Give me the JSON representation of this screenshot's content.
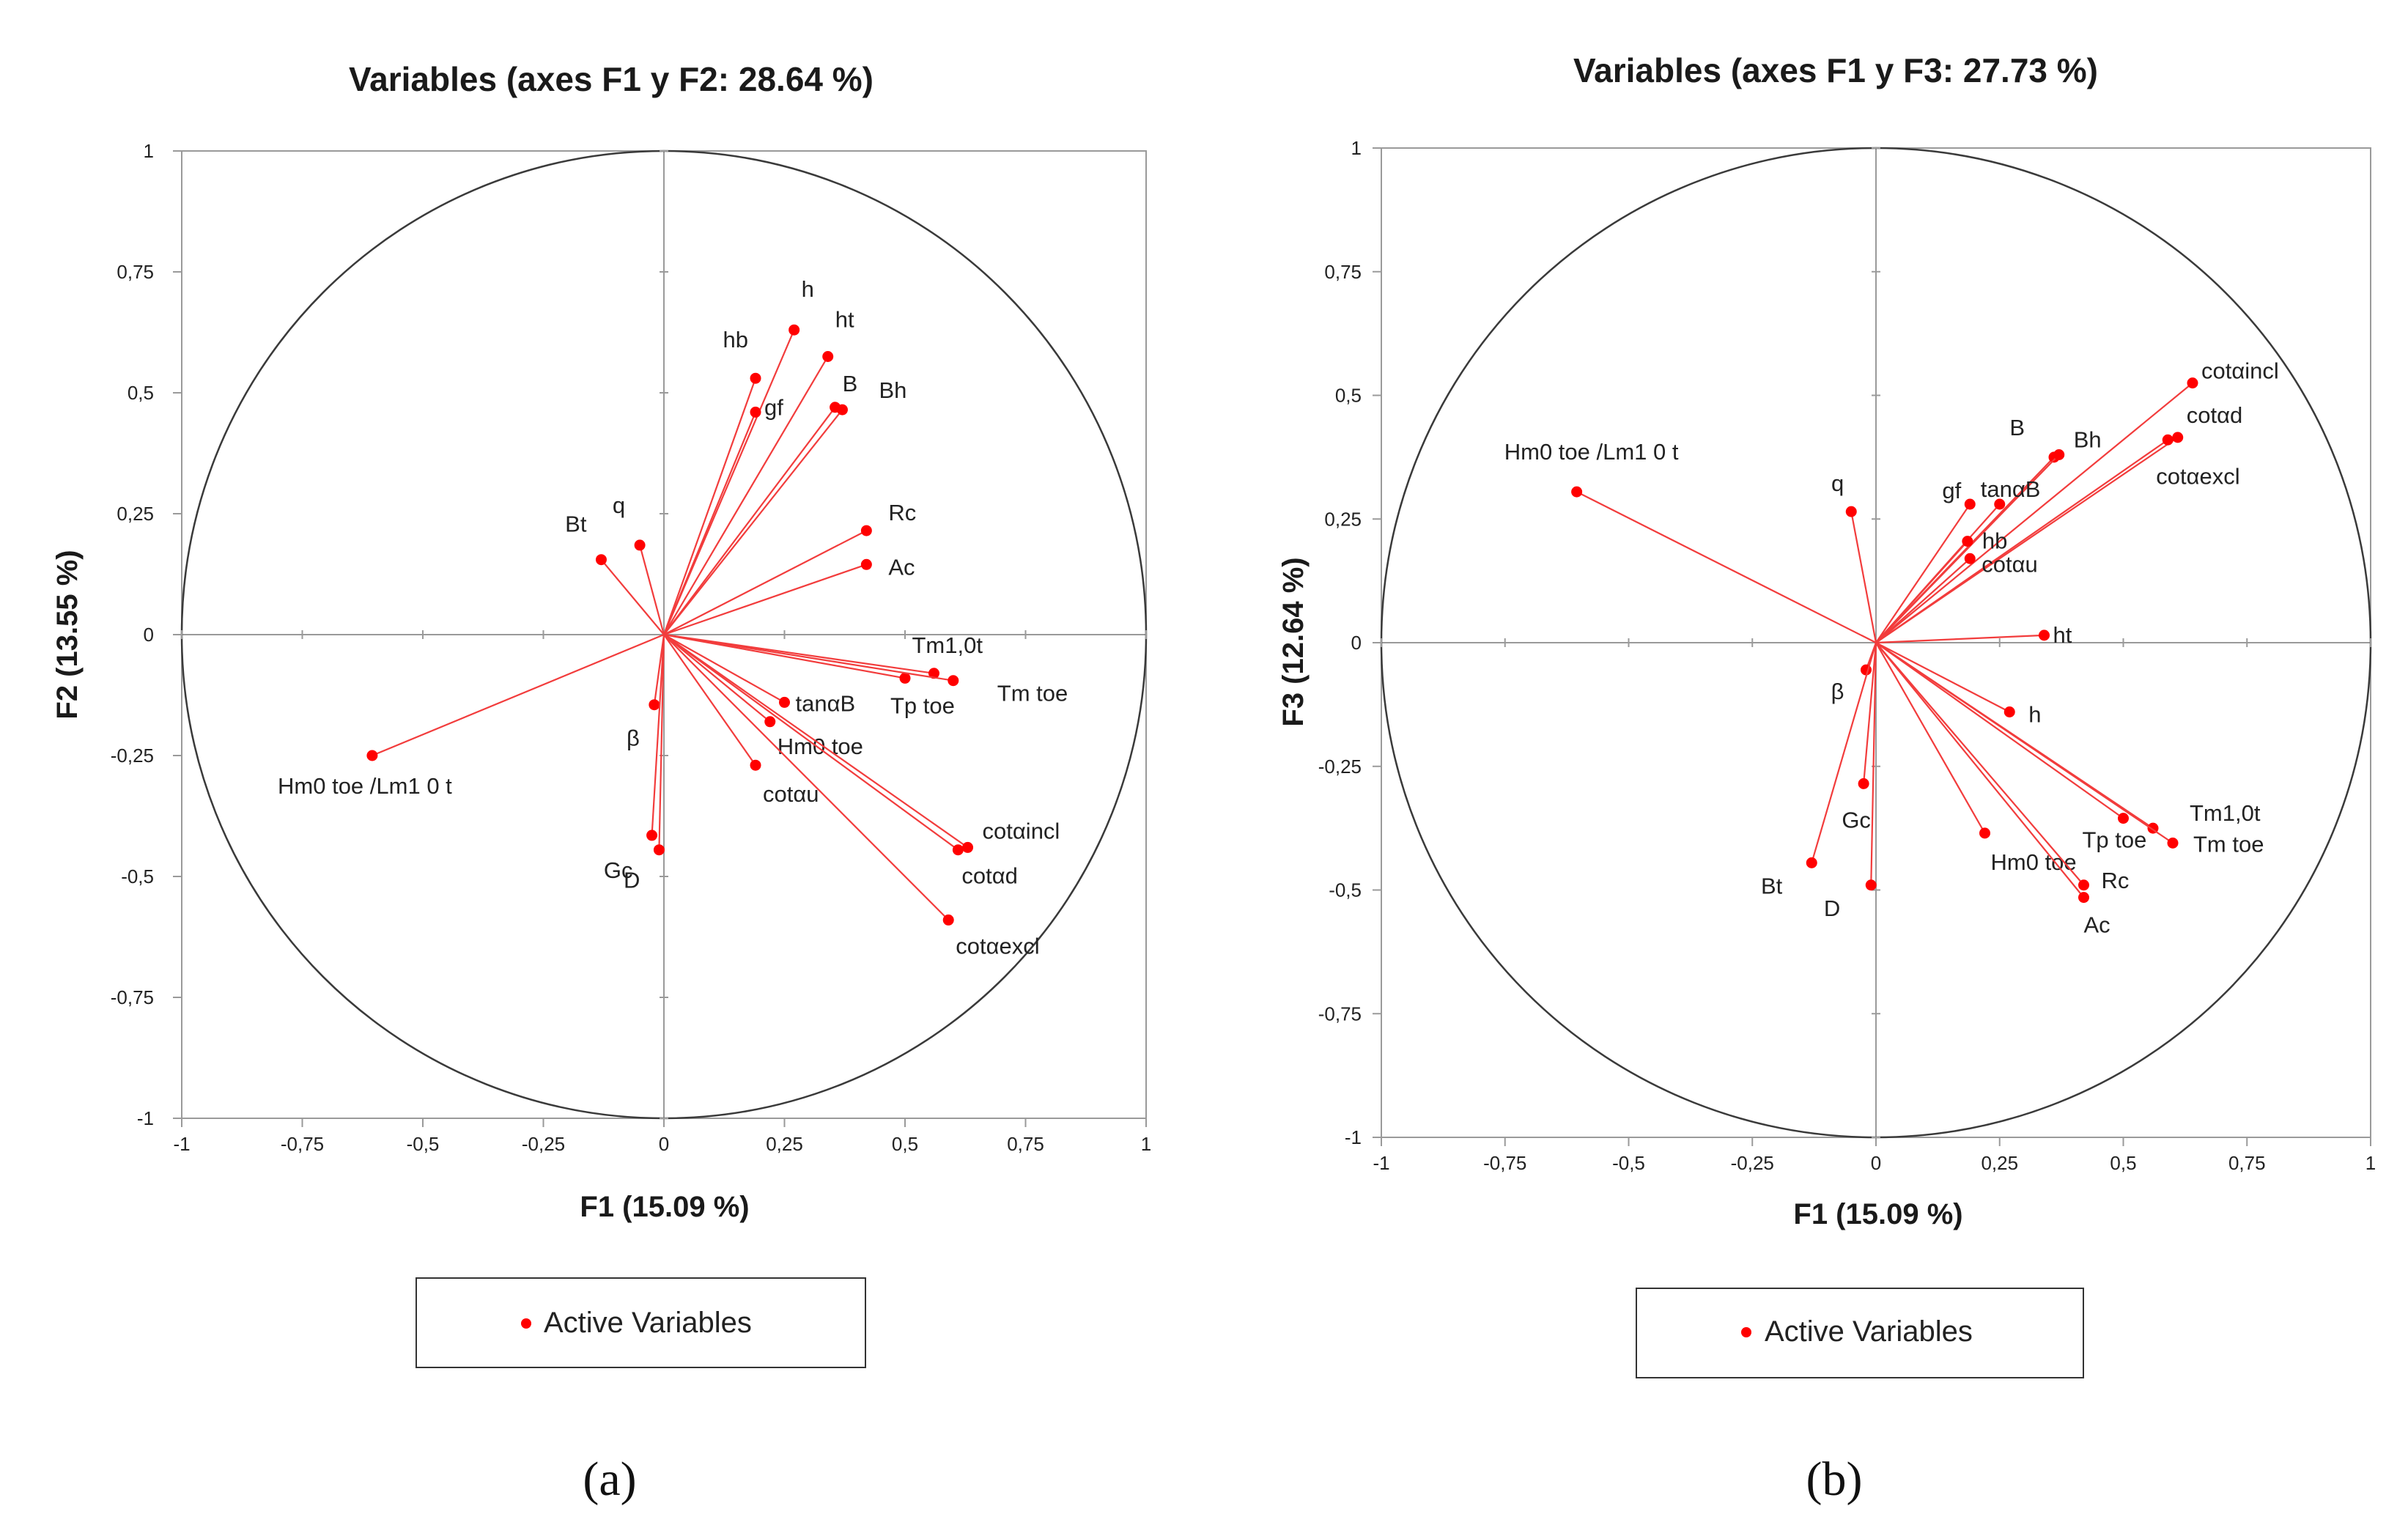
{
  "legend_label": "Active Variables",
  "colors": {
    "accent": "#ff0000",
    "vector": "#f23c3c",
    "frame": "#9a9a9a",
    "circle": "#3a3a3a"
  },
  "chart_data": [
    {
      "type": "scatter",
      "panel_label": "(a)",
      "title": "Variables (axes F1 y F2: 28.64 %)",
      "xlabel": "F1 (15.09 %)",
      "ylabel": "F2 (13.55 %)",
      "xlim": [
        -1,
        1
      ],
      "ylim": [
        -1,
        1
      ],
      "x_ticks": [
        "-1",
        "-0,75",
        "-0,5",
        "-0,25",
        "0",
        "0,25",
        "0,5",
        "0,75",
        "1"
      ],
      "y_ticks": [
        "-1",
        "-0,75",
        "-0,5",
        "-0,25",
        "0",
        "0,25",
        "0,5",
        "0,75",
        "1"
      ],
      "legend": "Active Variables",
      "points": [
        {
          "name": "h",
          "x": 0.27,
          "y": 0.63
        },
        {
          "name": "ht",
          "x": 0.34,
          "y": 0.575
        },
        {
          "name": "hb",
          "x": 0.19,
          "y": 0.53
        },
        {
          "name": "gf",
          "x": 0.19,
          "y": 0.46
        },
        {
          "name": "B",
          "x": 0.355,
          "y": 0.47
        },
        {
          "name": "Bh",
          "x": 0.37,
          "y": 0.465
        },
        {
          "name": "Rc",
          "x": 0.42,
          "y": 0.215
        },
        {
          "name": "Ac",
          "x": 0.42,
          "y": 0.145
        },
        {
          "name": "Bt",
          "x": -0.13,
          "y": 0.155
        },
        {
          "name": "q",
          "x": -0.05,
          "y": 0.185
        },
        {
          "name": "Tm1,0t",
          "x": 0.56,
          "y": -0.08
        },
        {
          "name": "Tp toe",
          "x": 0.5,
          "y": -0.09
        },
        {
          "name": "Tm toe",
          "x": 0.6,
          "y": -0.095
        },
        {
          "name": "tanαB",
          "x": 0.25,
          "y": -0.14
        },
        {
          "name": "Hm0 toe",
          "x": 0.22,
          "y": -0.18
        },
        {
          "name": "cotαu",
          "x": 0.19,
          "y": -0.27
        },
        {
          "name": "cotαincl",
          "x": 0.63,
          "y": -0.44
        },
        {
          "name": "cotαd",
          "x": 0.61,
          "y": -0.445
        },
        {
          "name": "cotαexcl",
          "x": 0.59,
          "y": -0.59
        },
        {
          "name": "β",
          "x": -0.02,
          "y": -0.145
        },
        {
          "name": "Gc",
          "x": -0.025,
          "y": -0.415
        },
        {
          "name": "D",
          "x": -0.01,
          "y": -0.445
        },
        {
          "name": "Hm0 toe /Lm1 0 t",
          "x": -0.605,
          "y": -0.25
        }
      ]
    },
    {
      "type": "scatter",
      "panel_label": "(b)",
      "title": "Variables (axes F1 y F3: 27.73 %)",
      "xlabel": "F1 (15.09 %)",
      "ylabel": "F3 (12.64 %)",
      "xlim": [
        -1,
        1
      ],
      "ylim": [
        -1,
        1
      ],
      "x_ticks": [
        "-1",
        "-0,75",
        "-0,5",
        "-0,25",
        "0",
        "0,25",
        "0,5",
        "0,75",
        "1"
      ],
      "y_ticks": [
        "-1",
        "-0,75",
        "-0,5",
        "-0,25",
        "0",
        "0,25",
        "0,5",
        "0,75",
        "1"
      ],
      "legend": "Active Variables",
      "points": [
        {
          "name": "cotαincl",
          "x": 0.64,
          "y": 0.525
        },
        {
          "name": "cotαd",
          "x": 0.61,
          "y": 0.415
        },
        {
          "name": "cotαexcl",
          "x": 0.59,
          "y": 0.41
        },
        {
          "name": "B",
          "x": 0.36,
          "y": 0.375
        },
        {
          "name": "Bh",
          "x": 0.37,
          "y": 0.38
        },
        {
          "name": "tanαB",
          "x": 0.25,
          "y": 0.28
        },
        {
          "name": "gf",
          "x": 0.19,
          "y": 0.28
        },
        {
          "name": "hb",
          "x": 0.185,
          "y": 0.205
        },
        {
          "name": "cotαu",
          "x": 0.19,
          "y": 0.17
        },
        {
          "name": "q",
          "x": -0.05,
          "y": 0.265
        },
        {
          "name": "Hm0 toe /Lm1 0 t",
          "x": -0.605,
          "y": 0.305
        },
        {
          "name": "ht",
          "x": 0.34,
          "y": 0.015
        },
        {
          "name": "h",
          "x": 0.27,
          "y": -0.14
        },
        {
          "name": "β",
          "x": -0.02,
          "y": -0.055
        },
        {
          "name": "Gc",
          "x": -0.025,
          "y": -0.285
        },
        {
          "name": "D",
          "x": -0.01,
          "y": -0.49
        },
        {
          "name": "Bt",
          "x": -0.13,
          "y": -0.445
        },
        {
          "name": "Hm0 toe",
          "x": 0.22,
          "y": -0.385
        },
        {
          "name": "Tm1,0t",
          "x": 0.56,
          "y": -0.375
        },
        {
          "name": "Tp toe",
          "x": 0.5,
          "y": -0.355
        },
        {
          "name": "Tm toe",
          "x": 0.6,
          "y": -0.405
        },
        {
          "name": "Rc",
          "x": 0.42,
          "y": -0.49
        },
        {
          "name": "Ac",
          "x": 0.42,
          "y": -0.515
        }
      ]
    }
  ]
}
